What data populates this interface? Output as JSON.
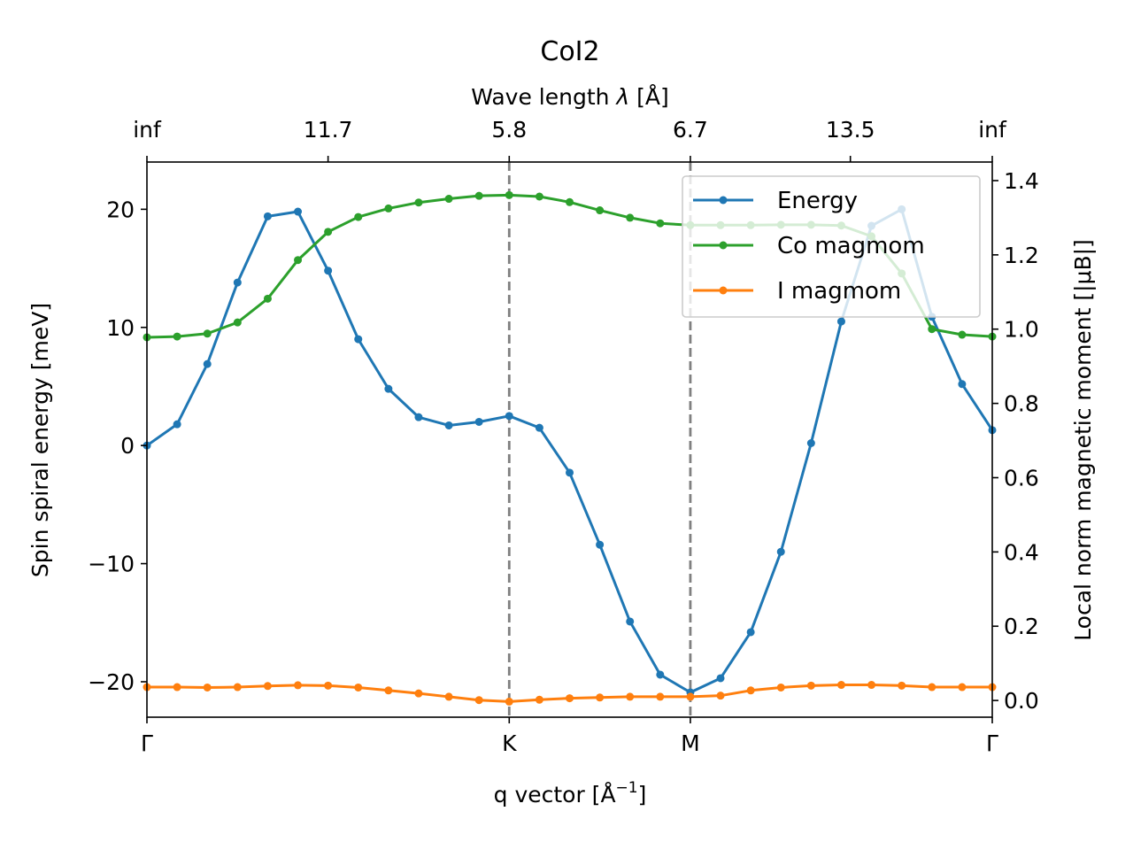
{
  "chart_data": {
    "type": "line",
    "title": "CoI2",
    "xlabel_prefix": "q vector [Å",
    "xlabel_sup": "−1",
    "xlabel_suffix": "]",
    "ylabel": "Spin spiral energy [meV]",
    "y2label": "Local norm magnetic moment [|μB|]",
    "top_axis_label": "Wave length λ [Å]",
    "x_range": [
      0,
      28
    ],
    "ylim": [
      -23,
      24
    ],
    "y2lim": [
      -0.045,
      1.45
    ],
    "x_ticks": [
      {
        "pos": 0,
        "label": "Γ"
      },
      {
        "pos": 12,
        "label": "K"
      },
      {
        "pos": 18,
        "label": "M"
      },
      {
        "pos": 28,
        "label": "Γ"
      }
    ],
    "top_ticks": [
      {
        "pos": 0,
        "label": "inf"
      },
      {
        "pos": 6,
        "label": "11.7"
      },
      {
        "pos": 12,
        "label": "5.8"
      },
      {
        "pos": 18,
        "label": "6.7"
      },
      {
        "pos": 23.3,
        "label": "13.5"
      },
      {
        "pos": 28,
        "label": "inf"
      }
    ],
    "y_ticks": [
      "20",
      "10",
      "0",
      "−10",
      "−20"
    ],
    "y_tick_values": [
      20,
      10,
      0,
      -10,
      -20
    ],
    "y2_ticks": [
      "1.4",
      "1.2",
      "1.0",
      "0.8",
      "0.6",
      "0.4",
      "0.2",
      "0.0"
    ],
    "y2_tick_values": [
      1.4,
      1.2,
      1.0,
      0.8,
      0.6,
      0.4,
      0.2,
      0.0
    ],
    "vlines": [
      12,
      18
    ],
    "legend_position": "upper-right",
    "x": [
      0,
      1,
      2,
      3,
      4,
      5,
      6,
      7,
      8,
      9,
      10,
      11,
      12,
      13,
      14,
      15,
      16,
      17,
      18,
      19,
      20,
      21,
      22,
      23,
      24,
      25,
      26,
      27,
      28
    ],
    "series": [
      {
        "name": "Energy",
        "axis": "left",
        "color": "#1f77b4",
        "values": [
          0.0,
          1.8,
          6.9,
          13.8,
          19.4,
          19.8,
          14.8,
          9.0,
          4.8,
          2.4,
          1.7,
          2.0,
          2.5,
          1.5,
          -2.3,
          -8.4,
          -14.9,
          -19.4,
          -20.9,
          -19.7,
          -15.8,
          -9.0,
          0.2,
          10.5,
          18.6,
          20.0,
          10.9,
          5.2,
          1.3
        ]
      },
      {
        "name": "Co magmom",
        "axis": "right",
        "color": "#2ca02c",
        "values": [
          0.978,
          0.98,
          0.988,
          1.018,
          1.082,
          1.186,
          1.262,
          1.302,
          1.325,
          1.341,
          1.351,
          1.359,
          1.361,
          1.357,
          1.342,
          1.32,
          1.3,
          1.285,
          1.28,
          1.28,
          1.28,
          1.281,
          1.281,
          1.279,
          1.25,
          1.15,
          1.0,
          0.985,
          0.98
        ]
      },
      {
        "name": "I magmom",
        "axis": "right",
        "color": "#ff7f0e",
        "values": [
          0.036,
          0.036,
          0.035,
          0.036,
          0.039,
          0.041,
          0.04,
          0.035,
          0.027,
          0.019,
          0.01,
          0.001,
          -0.003,
          0.002,
          0.006,
          0.008,
          0.01,
          0.01,
          0.01,
          0.013,
          0.027,
          0.035,
          0.04,
          0.042,
          0.042,
          0.04,
          0.036,
          0.036,
          0.036
        ]
      }
    ]
  }
}
